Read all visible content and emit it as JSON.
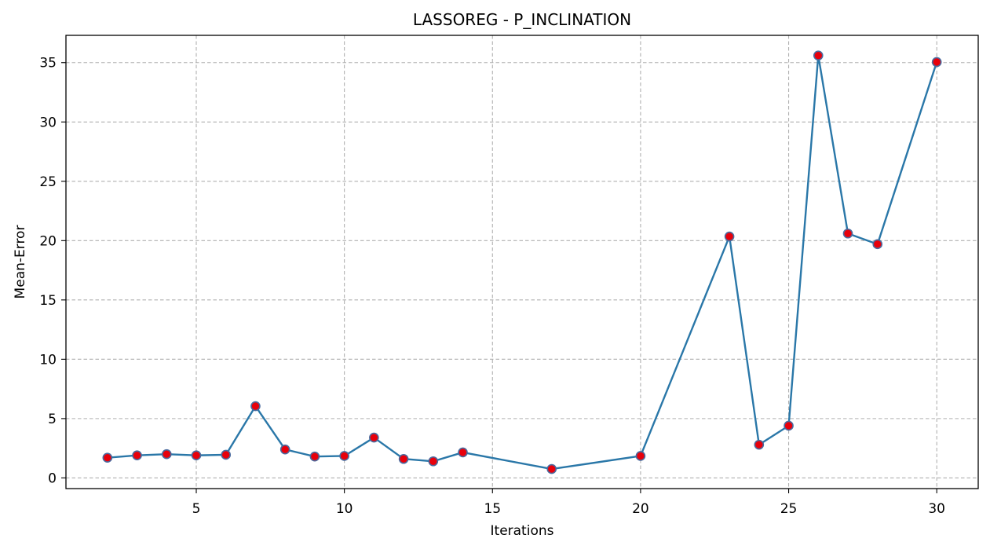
{
  "chart_data": {
    "type": "line",
    "title": "LASSOREG - P_INCLINATION",
    "xlabel": "Iterations",
    "ylabel": "Mean-Error",
    "xlim": [
      0.6,
      31.4
    ],
    "ylim": [
      -0.9,
      37.3
    ],
    "xticks": [
      5,
      10,
      15,
      20,
      25,
      30
    ],
    "yticks": [
      0,
      5,
      10,
      15,
      20,
      25,
      30,
      35
    ],
    "grid": true,
    "grid_style": "dashed",
    "line_color": "#2a77a8",
    "marker_face_color": "#e8000b",
    "marker_edge_color": "#4a6a9e",
    "series": [
      {
        "x": [
          2,
          3,
          4,
          5,
          6,
          7,
          8,
          9,
          10,
          11,
          12,
          13,
          14,
          17,
          20,
          23,
          24,
          25,
          26,
          27,
          28,
          30
        ],
        "y": [
          1.7,
          1.9,
          2.0,
          1.9,
          1.95,
          6.05,
          2.4,
          1.8,
          1.85,
          3.4,
          1.6,
          1.4,
          2.15,
          0.75,
          1.85,
          20.35,
          2.8,
          4.4,
          35.6,
          20.6,
          19.7,
          35.05
        ]
      }
    ]
  }
}
